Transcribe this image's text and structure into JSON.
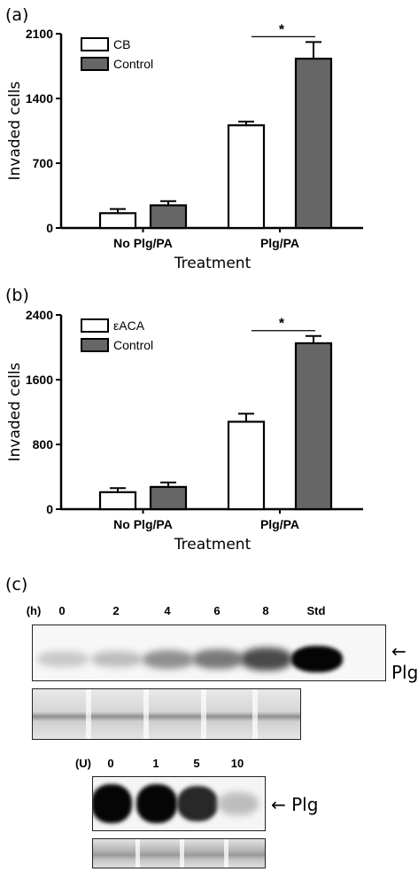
{
  "chart_data": [
    {
      "type": "bar",
      "panel": "(a)",
      "categories": [
        "No Plg/PA",
        "Plg/PA"
      ],
      "series": [
        {
          "name": "CB",
          "values": [
            160,
            1110
          ],
          "errors": [
            45,
            40
          ],
          "color": "#ffffff"
        },
        {
          "name": "Control",
          "values": [
            245,
            1830
          ],
          "errors": [
            45,
            180
          ],
          "color": "#666666"
        }
      ],
      "xlabel": "Treatment",
      "ylabel": "Invaded cells",
      "ylim": [
        0,
        2100
      ],
      "yticks": [
        "0",
        "700",
        "1400",
        "2100"
      ],
      "significance": "*",
      "legend_position": "top-left"
    },
    {
      "type": "bar",
      "panel": "(b)",
      "categories": [
        "No Plg/PA",
        "Plg/PA"
      ],
      "series": [
        {
          "name": "εACA",
          "values": [
            210,
            1080
          ],
          "errors": [
            50,
            100
          ],
          "color": "#ffffff"
        },
        {
          "name": "Control",
          "values": [
            275,
            2050
          ],
          "errors": [
            55,
            90
          ],
          "color": "#666666"
        }
      ],
      "xlabel": "Treatment",
      "ylabel": "Invaded cells",
      "ylim": [
        0,
        2400
      ],
      "yticks": [
        "0",
        "800",
        "1600",
        "2400"
      ],
      "significance": "*",
      "legend_position": "top-left"
    }
  ],
  "panel_c": {
    "label": "(c)",
    "blot1": {
      "unit": "(h)",
      "lanes": [
        "0",
        "2",
        "4",
        "6",
        "8",
        "Std"
      ],
      "band_intensity": [
        0.15,
        0.2,
        0.4,
        0.5,
        0.7,
        1.0
      ],
      "target": "Plg"
    },
    "blot2": {
      "unit": "(U)",
      "lanes": [
        "0",
        "1",
        "5",
        "10"
      ],
      "band_intensity": [
        1.0,
        1.0,
        0.85,
        0.2
      ],
      "target": "Plg"
    }
  }
}
